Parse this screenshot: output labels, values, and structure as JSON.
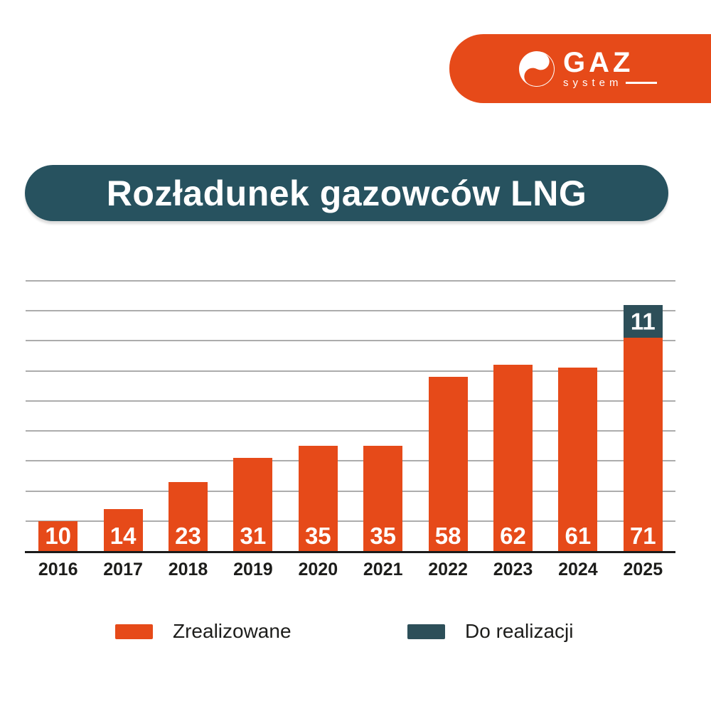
{
  "logo": {
    "brand": "GAZ",
    "subbrand": "system"
  },
  "chart_data": {
    "type": "bar",
    "stacked": true,
    "title": "Rozładunek gazowców LNG",
    "categories": [
      "2016",
      "2017",
      "2018",
      "2019",
      "2020",
      "2021",
      "2022",
      "2023",
      "2024",
      "2025"
    ],
    "series": [
      {
        "name": "Zrealizowane",
        "color": "#E64A19",
        "values": [
          10,
          14,
          23,
          31,
          35,
          35,
          58,
          62,
          61,
          71
        ]
      },
      {
        "name": "Do realizacji",
        "color": "#2D4F59",
        "values": [
          0,
          0,
          0,
          0,
          0,
          0,
          0,
          0,
          0,
          11
        ]
      }
    ],
    "xlabel": "",
    "ylabel": "",
    "ylim": [
      0,
      90
    ],
    "gridline_step": 10,
    "grid": true,
    "legend_position": "bottom",
    "value_labels": true
  },
  "colors": {
    "accent_orange": "#E64A19",
    "teal_dark": "#27525F",
    "teal_series": "#2D4F59",
    "grid_line": "#ACACAC",
    "axis_line": "#1A1A1A",
    "text_ink": "#1D1D1B",
    "label_white": "#FFFFFF"
  }
}
